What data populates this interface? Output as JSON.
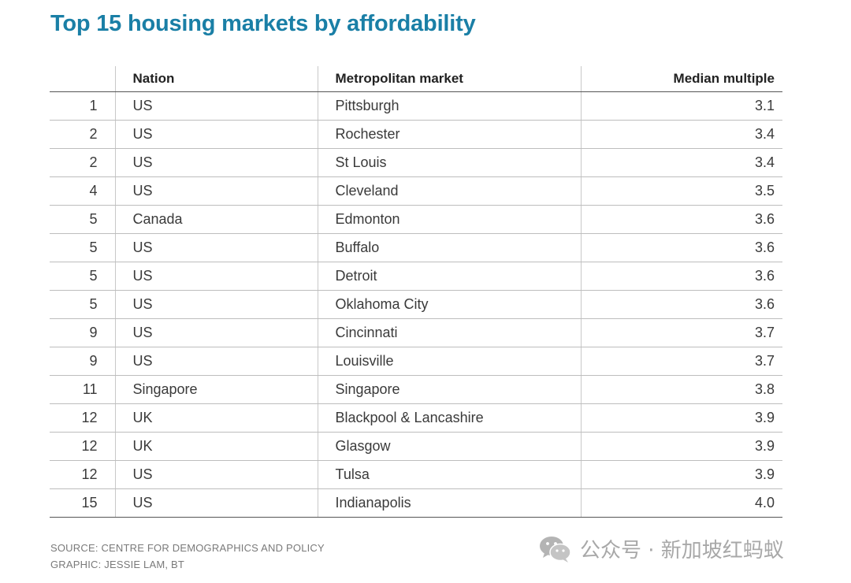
{
  "title": "Top 15 housing markets by affordability",
  "chart_data": {
    "type": "table",
    "title": "Top 15 housing markets by affordability",
    "columns": [
      "",
      "Nation",
      "Metropolitan market",
      "Median multiple"
    ],
    "rows": [
      {
        "rank": "1",
        "nation": "US",
        "market": "Pittsburgh",
        "multiple": "3.1"
      },
      {
        "rank": "2",
        "nation": "US",
        "market": "Rochester",
        "multiple": "3.4"
      },
      {
        "rank": "2",
        "nation": "US",
        "market": "St Louis",
        "multiple": "3.4"
      },
      {
        "rank": "4",
        "nation": "US",
        "market": "Cleveland",
        "multiple": "3.5"
      },
      {
        "rank": "5",
        "nation": "Canada",
        "market": "Edmonton",
        "multiple": "3.6"
      },
      {
        "rank": "5",
        "nation": "US",
        "market": "Buffalo",
        "multiple": "3.6"
      },
      {
        "rank": "5",
        "nation": "US",
        "market": "Detroit",
        "multiple": "3.6"
      },
      {
        "rank": "5",
        "nation": "US",
        "market": "Oklahoma City",
        "multiple": "3.6"
      },
      {
        "rank": "9",
        "nation": "US",
        "market": "Cincinnati",
        "multiple": "3.7"
      },
      {
        "rank": "9",
        "nation": "US",
        "market": "Louisville",
        "multiple": "3.7"
      },
      {
        "rank": "11",
        "nation": "Singapore",
        "market": "Singapore",
        "multiple": "3.8"
      },
      {
        "rank": "12",
        "nation": "UK",
        "market": "Blackpool & Lancashire",
        "multiple": "3.9"
      },
      {
        "rank": "12",
        "nation": "UK",
        "market": "Glasgow",
        "multiple": "3.9"
      },
      {
        "rank": "12",
        "nation": "US",
        "market": "Tulsa",
        "multiple": "3.9"
      },
      {
        "rank": "15",
        "nation": "US",
        "market": "Indianapolis",
        "multiple": "4.0"
      }
    ]
  },
  "source": {
    "line1": "SOURCE: CENTRE FOR DEMOGRAPHICS AND POLICY",
    "line2": "GRAPHIC: JESSIE LAM, BT"
  },
  "watermark": {
    "icon": "wechat-icon",
    "text": "公众号 · 新加坡红蚂蚁"
  },
  "colors": {
    "title": "#1a7fa6",
    "text": "#3a3a3a",
    "source": "#7a7a7a",
    "watermark": "#a8a8a8"
  }
}
